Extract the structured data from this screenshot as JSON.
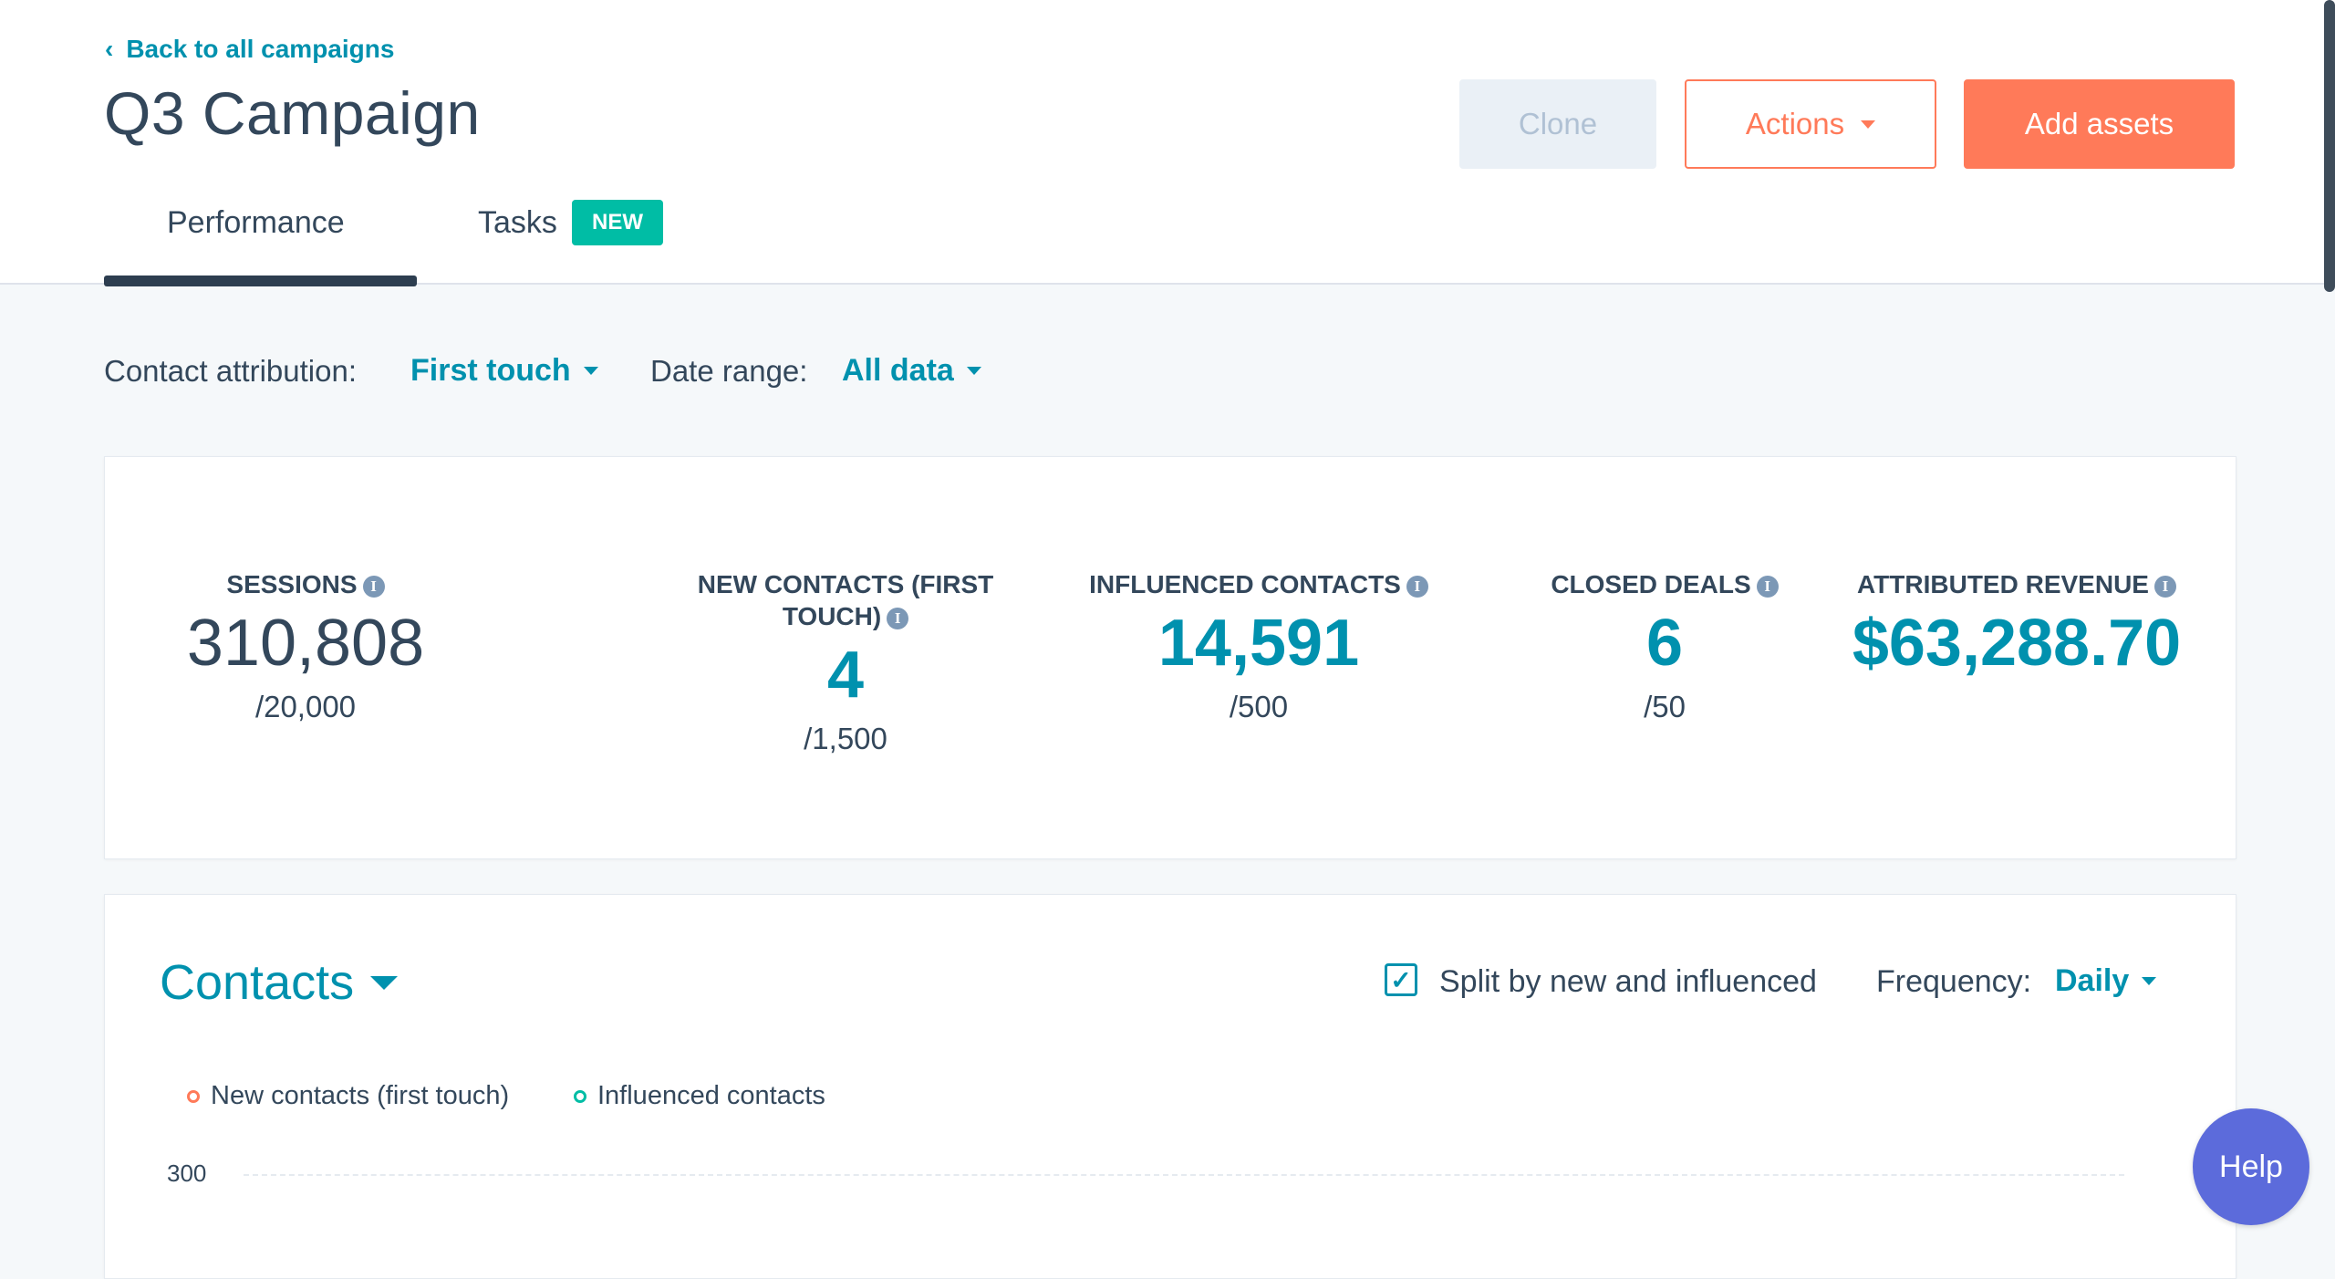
{
  "header": {
    "back_link": "Back to all campaigns",
    "title": "Q3 Campaign",
    "buttons": {
      "clone": "Clone",
      "actions": "Actions",
      "add_assets": "Add assets"
    },
    "tabs": [
      {
        "label": "Performance",
        "active": true
      },
      {
        "label": "Tasks",
        "badge": "NEW"
      }
    ]
  },
  "filters": {
    "attribution_label": "Contact attribution:",
    "attribution_value": "First touch",
    "date_label": "Date range:",
    "date_value": "All data"
  },
  "kpis": [
    {
      "label": "SESSIONS",
      "value": "310,808",
      "goal": "/20,000"
    },
    {
      "label": "NEW CONTACTS (FIRST TOUCH)",
      "value": "4",
      "goal": "/1,500"
    },
    {
      "label": "INFLUENCED CONTACTS",
      "value": "14,591",
      "goal": "/500"
    },
    {
      "label": "CLOSED DEALS",
      "value": "6",
      "goal": "/50"
    },
    {
      "label": "ATTRIBUTED REVENUE",
      "value": "$63,288.70",
      "goal": ""
    }
  ],
  "chart_card": {
    "title": "Contacts",
    "split_label": "Split by new and influenced",
    "split_checked": true,
    "frequency_label": "Frequency:",
    "frequency_value": "Daily",
    "legend": [
      {
        "label": "New contacts (first touch)",
        "color": "#ff7a59"
      },
      {
        "label": "Influenced contacts",
        "color": "#00bda5"
      }
    ],
    "y_tick": "300"
  },
  "help_label": "Help",
  "colors": {
    "accent_teal": "#0091ae",
    "orange": "#ff7a59",
    "badge_green": "#00bda5",
    "help_purple": "#5c6bdb"
  },
  "icons": {
    "back": "chevron-left-icon",
    "info": "info-icon",
    "dropdown": "caret-down-icon",
    "checkbox": "checkmark-icon"
  }
}
